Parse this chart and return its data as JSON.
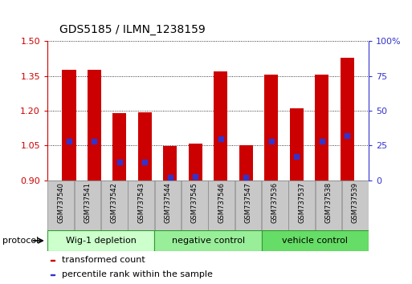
{
  "title": "GDS5185 / ILMN_1238159",
  "samples": [
    "GSM737540",
    "GSM737541",
    "GSM737542",
    "GSM737543",
    "GSM737544",
    "GSM737545",
    "GSM737546",
    "GSM737547",
    "GSM737536",
    "GSM737537",
    "GSM737538",
    "GSM737539"
  ],
  "transformed_counts": [
    1.375,
    1.375,
    1.19,
    1.195,
    1.048,
    1.06,
    1.37,
    1.052,
    1.355,
    1.21,
    1.355,
    1.43
  ],
  "percentile_ranks": [
    28,
    28,
    13,
    13,
    2,
    3,
    30,
    2,
    28,
    17,
    28,
    32
  ],
  "bar_color": "#cc0000",
  "blue_color": "#3333cc",
  "baseline": 0.9,
  "ylim_left": [
    0.9,
    1.5
  ],
  "ylim_right": [
    0,
    100
  ],
  "yticks_left": [
    0.9,
    1.05,
    1.2,
    1.35,
    1.5
  ],
  "yticks_right": [
    0,
    25,
    50,
    75,
    100
  ],
  "ylabel_left_color": "#cc0000",
  "ylabel_right_color": "#3333cc",
  "groups": [
    {
      "label": "Wig-1 depletion",
      "start": 0,
      "end": 4,
      "color": "#ccffcc"
    },
    {
      "label": "negative control",
      "start": 4,
      "end": 8,
      "color": "#99ee99"
    },
    {
      "label": "vehicle control",
      "start": 8,
      "end": 12,
      "color": "#66dd66"
    }
  ],
  "protocol_label": "protocol",
  "legend_items": [
    {
      "color": "#cc0000",
      "label": "transformed count"
    },
    {
      "color": "#3333cc",
      "label": "percentile rank within the sample"
    }
  ],
  "bar_width": 0.55,
  "blue_square_size": 25,
  "sample_box_color": "#c8c8c8",
  "title_fontsize": 10,
  "tick_fontsize": 8,
  "sample_fontsize": 6,
  "group_fontsize": 8,
  "legend_fontsize": 8
}
